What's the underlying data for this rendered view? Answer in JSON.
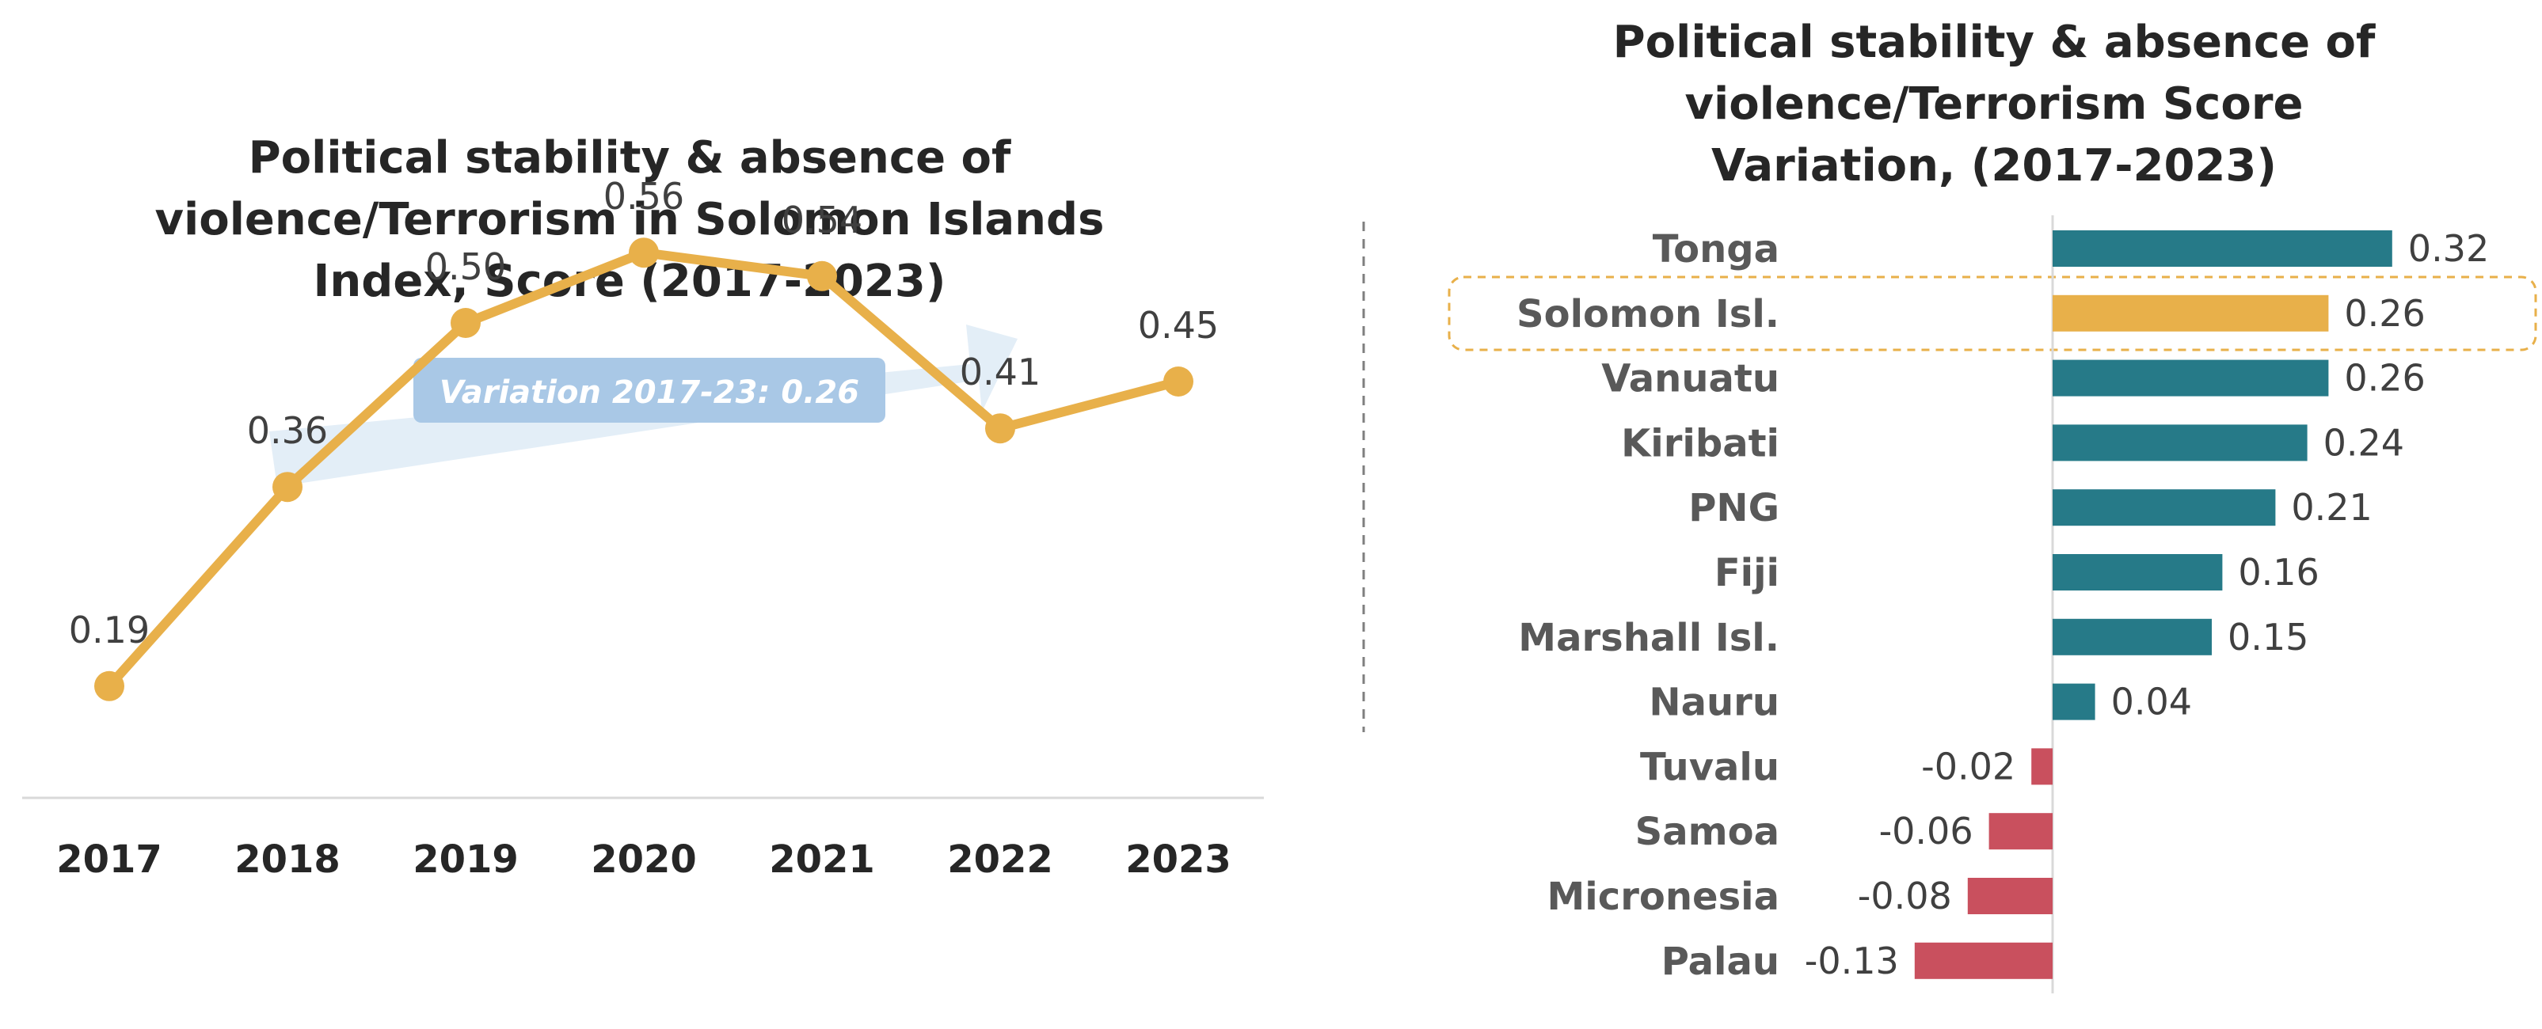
{
  "colors": {
    "line": "#E8B04A",
    "bar_positive": "#267A88",
    "bar_negative": "#C9505E",
    "bar_highlight": "#E8B04A",
    "highlight_border": "#E8B04A",
    "arrow": "#E3EEF7",
    "badge": "#A9C8E6",
    "axis": "#D9D9D9",
    "divider": "#7F7F7F"
  },
  "chart_data": [
    {
      "type": "line",
      "title_lines": [
        "Political stability & absence of",
        "violence/Terrorism in Solomon Islands",
        "Index, Score (2017-2023)"
      ],
      "x": [
        "2017",
        "2018",
        "2019",
        "2020",
        "2021",
        "2022",
        "2023"
      ],
      "values": [
        0.19,
        0.36,
        0.5,
        0.56,
        0.54,
        0.41,
        0.45
      ],
      "value_labels": [
        "0.19",
        "0.36",
        "0.50",
        "0.56",
        "0.54",
        "0.41",
        "0.45"
      ],
      "annotation": "Variation 2017-23: 0.26",
      "ylim": [
        0,
        0.7
      ],
      "grid": false
    },
    {
      "type": "bar",
      "orientation": "horizontal",
      "title_lines": [
        "Political stability & absence of",
        "violence/Terrorism Score",
        "Variation, (2017-2023)"
      ],
      "categories": [
        "Tonga",
        "Solomon Isl.",
        "Vanuatu",
        "Kiribati",
        "PNG",
        "Fiji",
        "Marshall Isl.",
        "Nauru",
        "Tuvalu",
        "Samoa",
        "Micronesia",
        "Palau"
      ],
      "values": [
        0.32,
        0.26,
        0.26,
        0.24,
        0.21,
        0.16,
        0.15,
        0.04,
        -0.02,
        -0.06,
        -0.08,
        -0.13
      ],
      "value_labels": [
        "0.32",
        "0.26",
        "0.26",
        "0.24",
        "0.21",
        "0.16",
        "0.15",
        "0.04",
        "-0.02",
        "-0.06",
        "-0.08",
        "-0.13"
      ],
      "highlight": "Solomon Isl.",
      "grid": false
    }
  ]
}
